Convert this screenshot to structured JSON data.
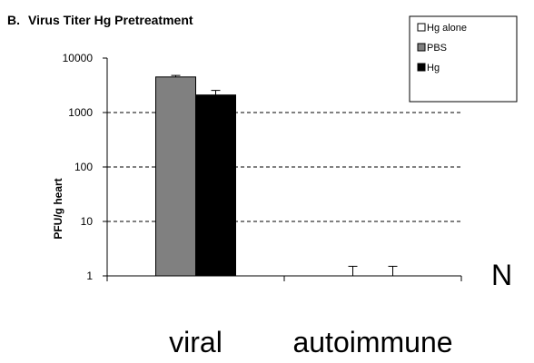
{
  "chart_data": {
    "type": "bar",
    "panel_label": "B.",
    "title": "Virus Titer Hg Pretreatment",
    "ylabel": "PFU/g heart",
    "xlabel": "",
    "yscale": "log",
    "ylim": [
      1,
      10000
    ],
    "y_ticks": [
      1,
      10,
      100,
      1000,
      10000
    ],
    "grid": "dashed horizontal lines at 10, 100, 1000",
    "categories": [
      "viral",
      "autoimmune"
    ],
    "series": [
      {
        "name": "Hg alone",
        "color": "#ffffff",
        "values": [
          null,
          null
        ],
        "errors": [
          null,
          null
        ]
      },
      {
        "name": "PBS",
        "color": "#808080",
        "values": [
          4500,
          1
        ],
        "errors": [
          300,
          0.5
        ]
      },
      {
        "name": "Hg",
        "color": "#000000",
        "values": [
          2100,
          1
        ],
        "errors": [
          450,
          0.5
        ]
      }
    ],
    "legend_position": "top-right",
    "annotation": "N"
  }
}
